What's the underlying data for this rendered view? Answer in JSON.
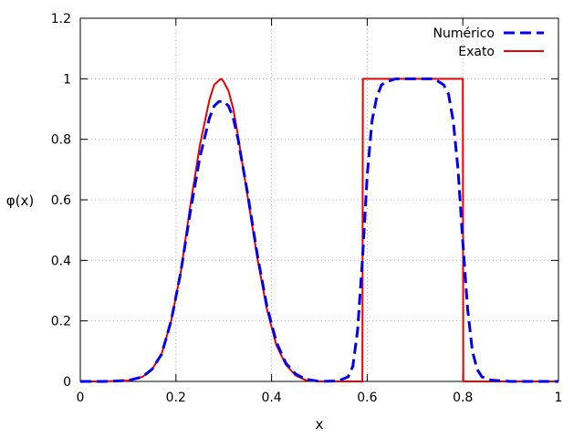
{
  "chart_data": {
    "type": "line",
    "title": "",
    "xlabel": "x",
    "ylabel": "φ(x)",
    "xlim": [
      0,
      1
    ],
    "ylim": [
      0,
      1.2
    ],
    "x_ticks": [
      "0",
      "0.2",
      "0.4",
      "0.6",
      "0.8",
      "1"
    ],
    "y_ticks": [
      "0",
      "0.2",
      "0.4",
      "0.6",
      "0.8",
      "1",
      "1.2"
    ],
    "x_tick_values": [
      0,
      0.2,
      0.4,
      0.6,
      0.8,
      1
    ],
    "y_tick_values": [
      0,
      0.2,
      0.4,
      0.6,
      0.8,
      1,
      1.2
    ],
    "grid": true,
    "legend_position": "top-right",
    "series": [
      {
        "name": "Numérico",
        "color": "#0000ee",
        "style": "dashed",
        "x": [
          0,
          0.05,
          0.1,
          0.13,
          0.15,
          0.17,
          0.19,
          0.21,
          0.23,
          0.25,
          0.27,
          0.28,
          0.29,
          0.3,
          0.31,
          0.32,
          0.33,
          0.35,
          0.37,
          0.39,
          0.41,
          0.43,
          0.45,
          0.47,
          0.5,
          0.54,
          0.56,
          0.57,
          0.58,
          0.59,
          0.6,
          0.61,
          0.62,
          0.63,
          0.64,
          0.66,
          0.68,
          0.7,
          0.72,
          0.74,
          0.76,
          0.77,
          0.78,
          0.79,
          0.8,
          0.81,
          0.82,
          0.83,
          0.84,
          0.86,
          0.9,
          1.0
        ],
        "y": [
          0,
          0,
          0.003,
          0.015,
          0.04,
          0.09,
          0.2,
          0.36,
          0.56,
          0.74,
          0.87,
          0.91,
          0.925,
          0.925,
          0.91,
          0.87,
          0.8,
          0.62,
          0.42,
          0.25,
          0.13,
          0.06,
          0.025,
          0.008,
          0.0,
          0.002,
          0.015,
          0.05,
          0.17,
          0.4,
          0.68,
          0.86,
          0.94,
          0.98,
          0.99,
          1.0,
          1.0,
          1.0,
          1.0,
          1.0,
          0.98,
          0.95,
          0.86,
          0.7,
          0.46,
          0.24,
          0.1,
          0.04,
          0.015,
          0.004,
          0.0,
          0.0
        ]
      },
      {
        "name": "Exato",
        "color": "#ee0000",
        "style": "solid",
        "x": [
          0,
          0.05,
          0.1,
          0.13,
          0.15,
          0.17,
          0.19,
          0.21,
          0.23,
          0.25,
          0.27,
          0.28,
          0.29,
          0.295,
          0.3,
          0.305,
          0.31,
          0.32,
          0.33,
          0.35,
          0.37,
          0.39,
          0.41,
          0.43,
          0.45,
          0.47,
          0.5,
          0.55,
          0.59,
          0.591,
          0.6,
          0.7,
          0.8,
          0.801,
          0.85,
          1.0
        ],
        "y": [
          0,
          0,
          0.003,
          0.015,
          0.04,
          0.09,
          0.2,
          0.36,
          0.58,
          0.78,
          0.93,
          0.98,
          0.995,
          1.0,
          0.99,
          0.975,
          0.96,
          0.9,
          0.81,
          0.61,
          0.41,
          0.24,
          0.12,
          0.055,
          0.02,
          0.005,
          0.0,
          0.0,
          0.0,
          1.0,
          1.0,
          1.0,
          1.0,
          0.0,
          0.0,
          0.0
        ]
      }
    ]
  }
}
